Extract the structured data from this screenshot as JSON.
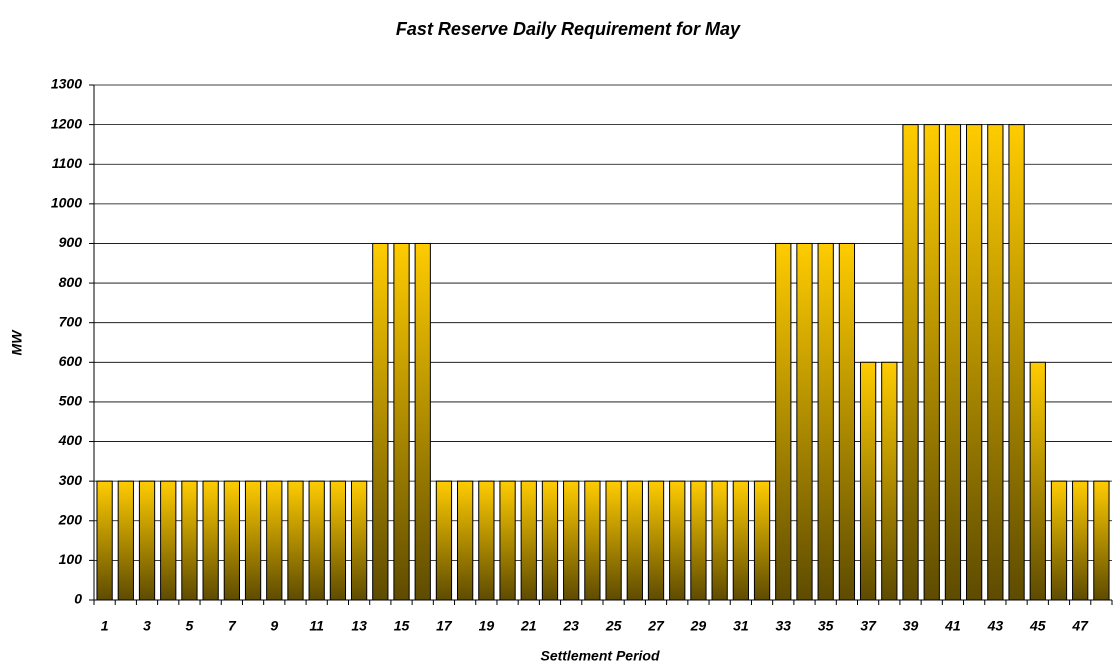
{
  "chart_data": {
    "type": "bar",
    "title": "Fast Reserve Daily Requirement for May",
    "x_label": "Settlement Period",
    "y_label": "MW",
    "categories": [
      "1",
      null,
      "3",
      null,
      "5",
      null,
      "7",
      null,
      "9",
      null,
      "11",
      null,
      "13",
      null,
      "15",
      null,
      "17",
      null,
      "19",
      null,
      "21",
      null,
      "23",
      null,
      "25",
      null,
      "27",
      null,
      "29",
      null,
      "31",
      null,
      "33",
      null,
      "35",
      null,
      "37",
      null,
      "39",
      null,
      "41",
      null,
      "43",
      null,
      "45",
      null,
      "47",
      null
    ],
    "values": [
      300,
      300,
      300,
      300,
      300,
      300,
      300,
      300,
      300,
      300,
      300,
      300,
      300,
      900,
      900,
      900,
      300,
      300,
      300,
      300,
      300,
      300,
      300,
      300,
      300,
      300,
      300,
      300,
      300,
      300,
      300,
      300,
      900,
      900,
      900,
      900,
      600,
      600,
      1200,
      1200,
      1200,
      1200,
      1200,
      1200,
      600,
      300,
      300,
      300
    ],
    "gradient": [
      "#ffcc00",
      "#5e4b00"
    ],
    "ylim": [
      0,
      1300
    ],
    "yticks": [
      0,
      100,
      200,
      300,
      400,
      500,
      600,
      700,
      800,
      900,
      1000,
      1100,
      1200,
      1300
    ],
    "grid": true
  }
}
